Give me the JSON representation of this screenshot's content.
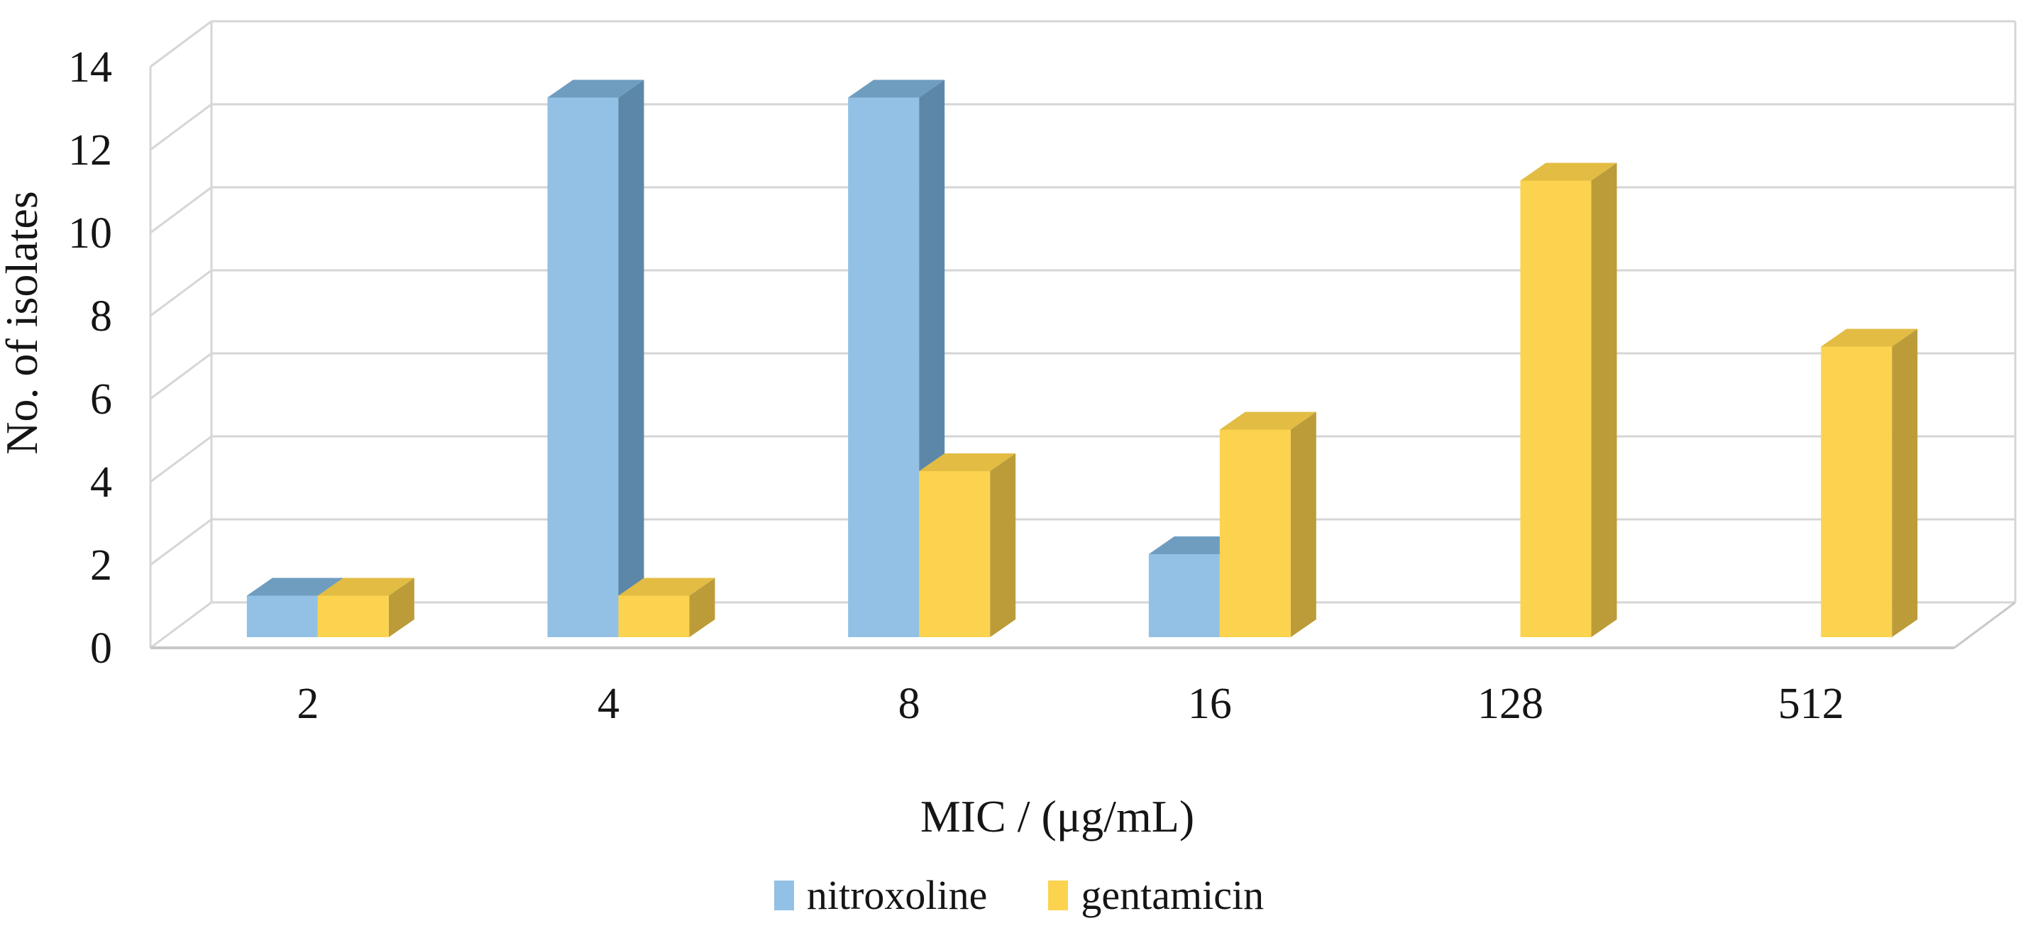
{
  "figure": {
    "background": "#FFFFFF",
    "gridline_color": "#D6D6D6",
    "floor_edge_color": "#C8C8C8",
    "text_color": "#151515"
  },
  "chart_data": {
    "type": "bar",
    "projection": "3d-clustered-column",
    "title": "",
    "xlabel": "MIC / (μg/mL)",
    "ylabel": "No. of isolates",
    "categories": [
      "2",
      "4",
      "8",
      "16",
      "128",
      "512"
    ],
    "series": [
      {
        "name": "nitroxoline",
        "values": [
          1,
          13,
          13,
          2,
          0,
          0
        ],
        "color_front": "#92C1E5",
        "color_top": "#6F9DC0",
        "color_side": "#5C87A9"
      },
      {
        "name": "gentamicin",
        "values": [
          1,
          1,
          4,
          5,
          11,
          7
        ],
        "color_front": "#FCD34F",
        "color_top": "#E2BC43",
        "color_side": "#BC9C39"
      }
    ],
    "ylim": [
      0,
      14
    ],
    "yticks": [
      0,
      2,
      4,
      6,
      8,
      10,
      12,
      14
    ],
    "grid": true,
    "legend_position": "bottom"
  }
}
